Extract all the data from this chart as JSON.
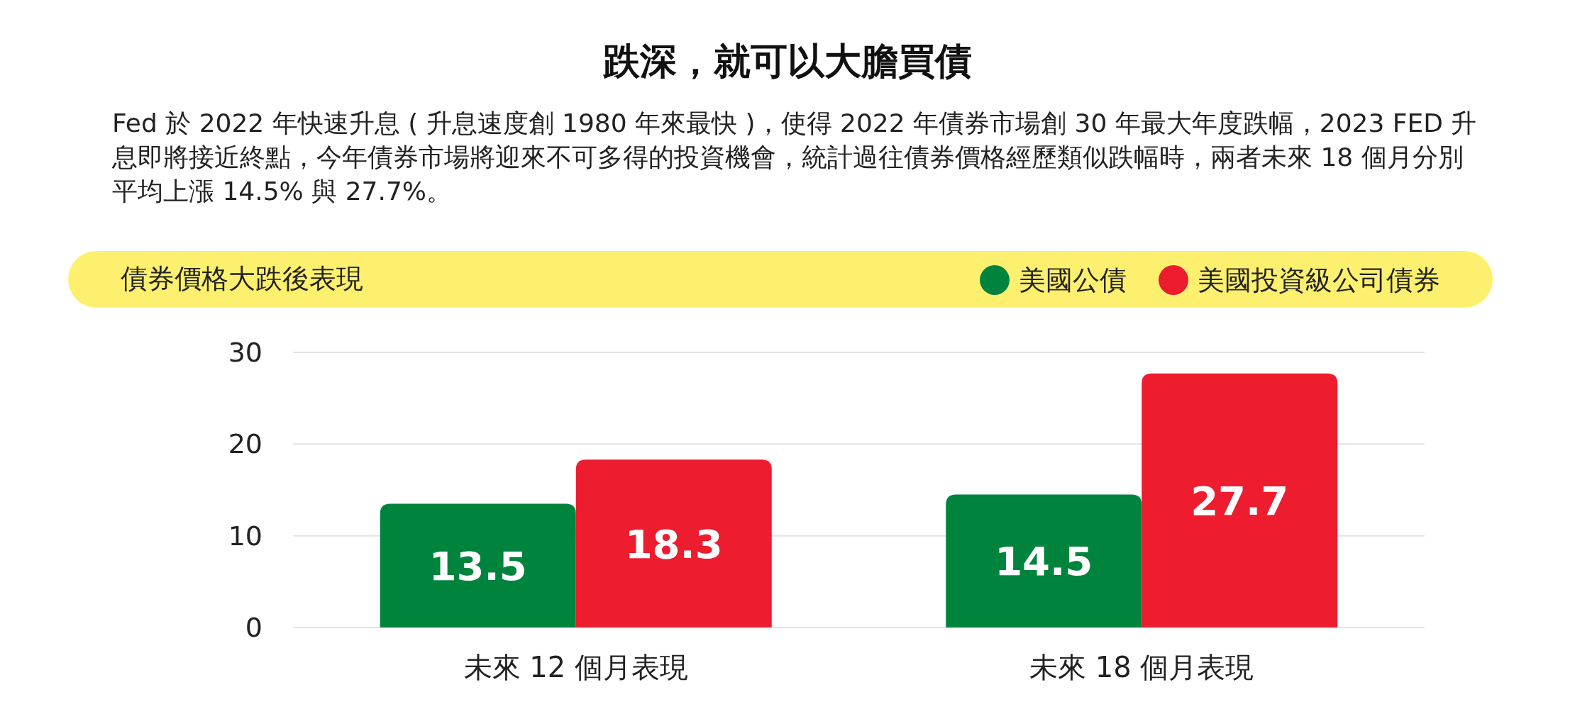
{
  "chart_data": {
    "type": "bar",
    "title": "跌深，就可以大膽買債",
    "subtitle": "Fed 於 2022 年快速升息 ( 升息速度創 1980 年來最快 )，使得 2022 年債券市場創 30 年最大年度跌幅，2023 FED 升息即將接近終點，今年債券市場將迎來不可多得的投資機會，統計過往債券價格經歷類似跌幅時，兩者未來 18 個月分別平均上漲 14.5% 與 27.7%。",
    "legend_title": "債券價格大跌後表現",
    "categories": [
      "未來 12 個月表現",
      "未來 18 個月表現"
    ],
    "series": [
      {
        "name": "美國公債",
        "color": "#00843d",
        "values": [
          13.5,
          14.5
        ]
      },
      {
        "name": "美國投資級公司債券",
        "color": "#ed1c2e",
        "values": [
          18.3,
          27.7
        ]
      }
    ],
    "ylim": [
      0,
      30
    ],
    "yticks": [
      0,
      10,
      20,
      30
    ],
    "grid": "y",
    "legend": "top right",
    "data_labels": true
  }
}
